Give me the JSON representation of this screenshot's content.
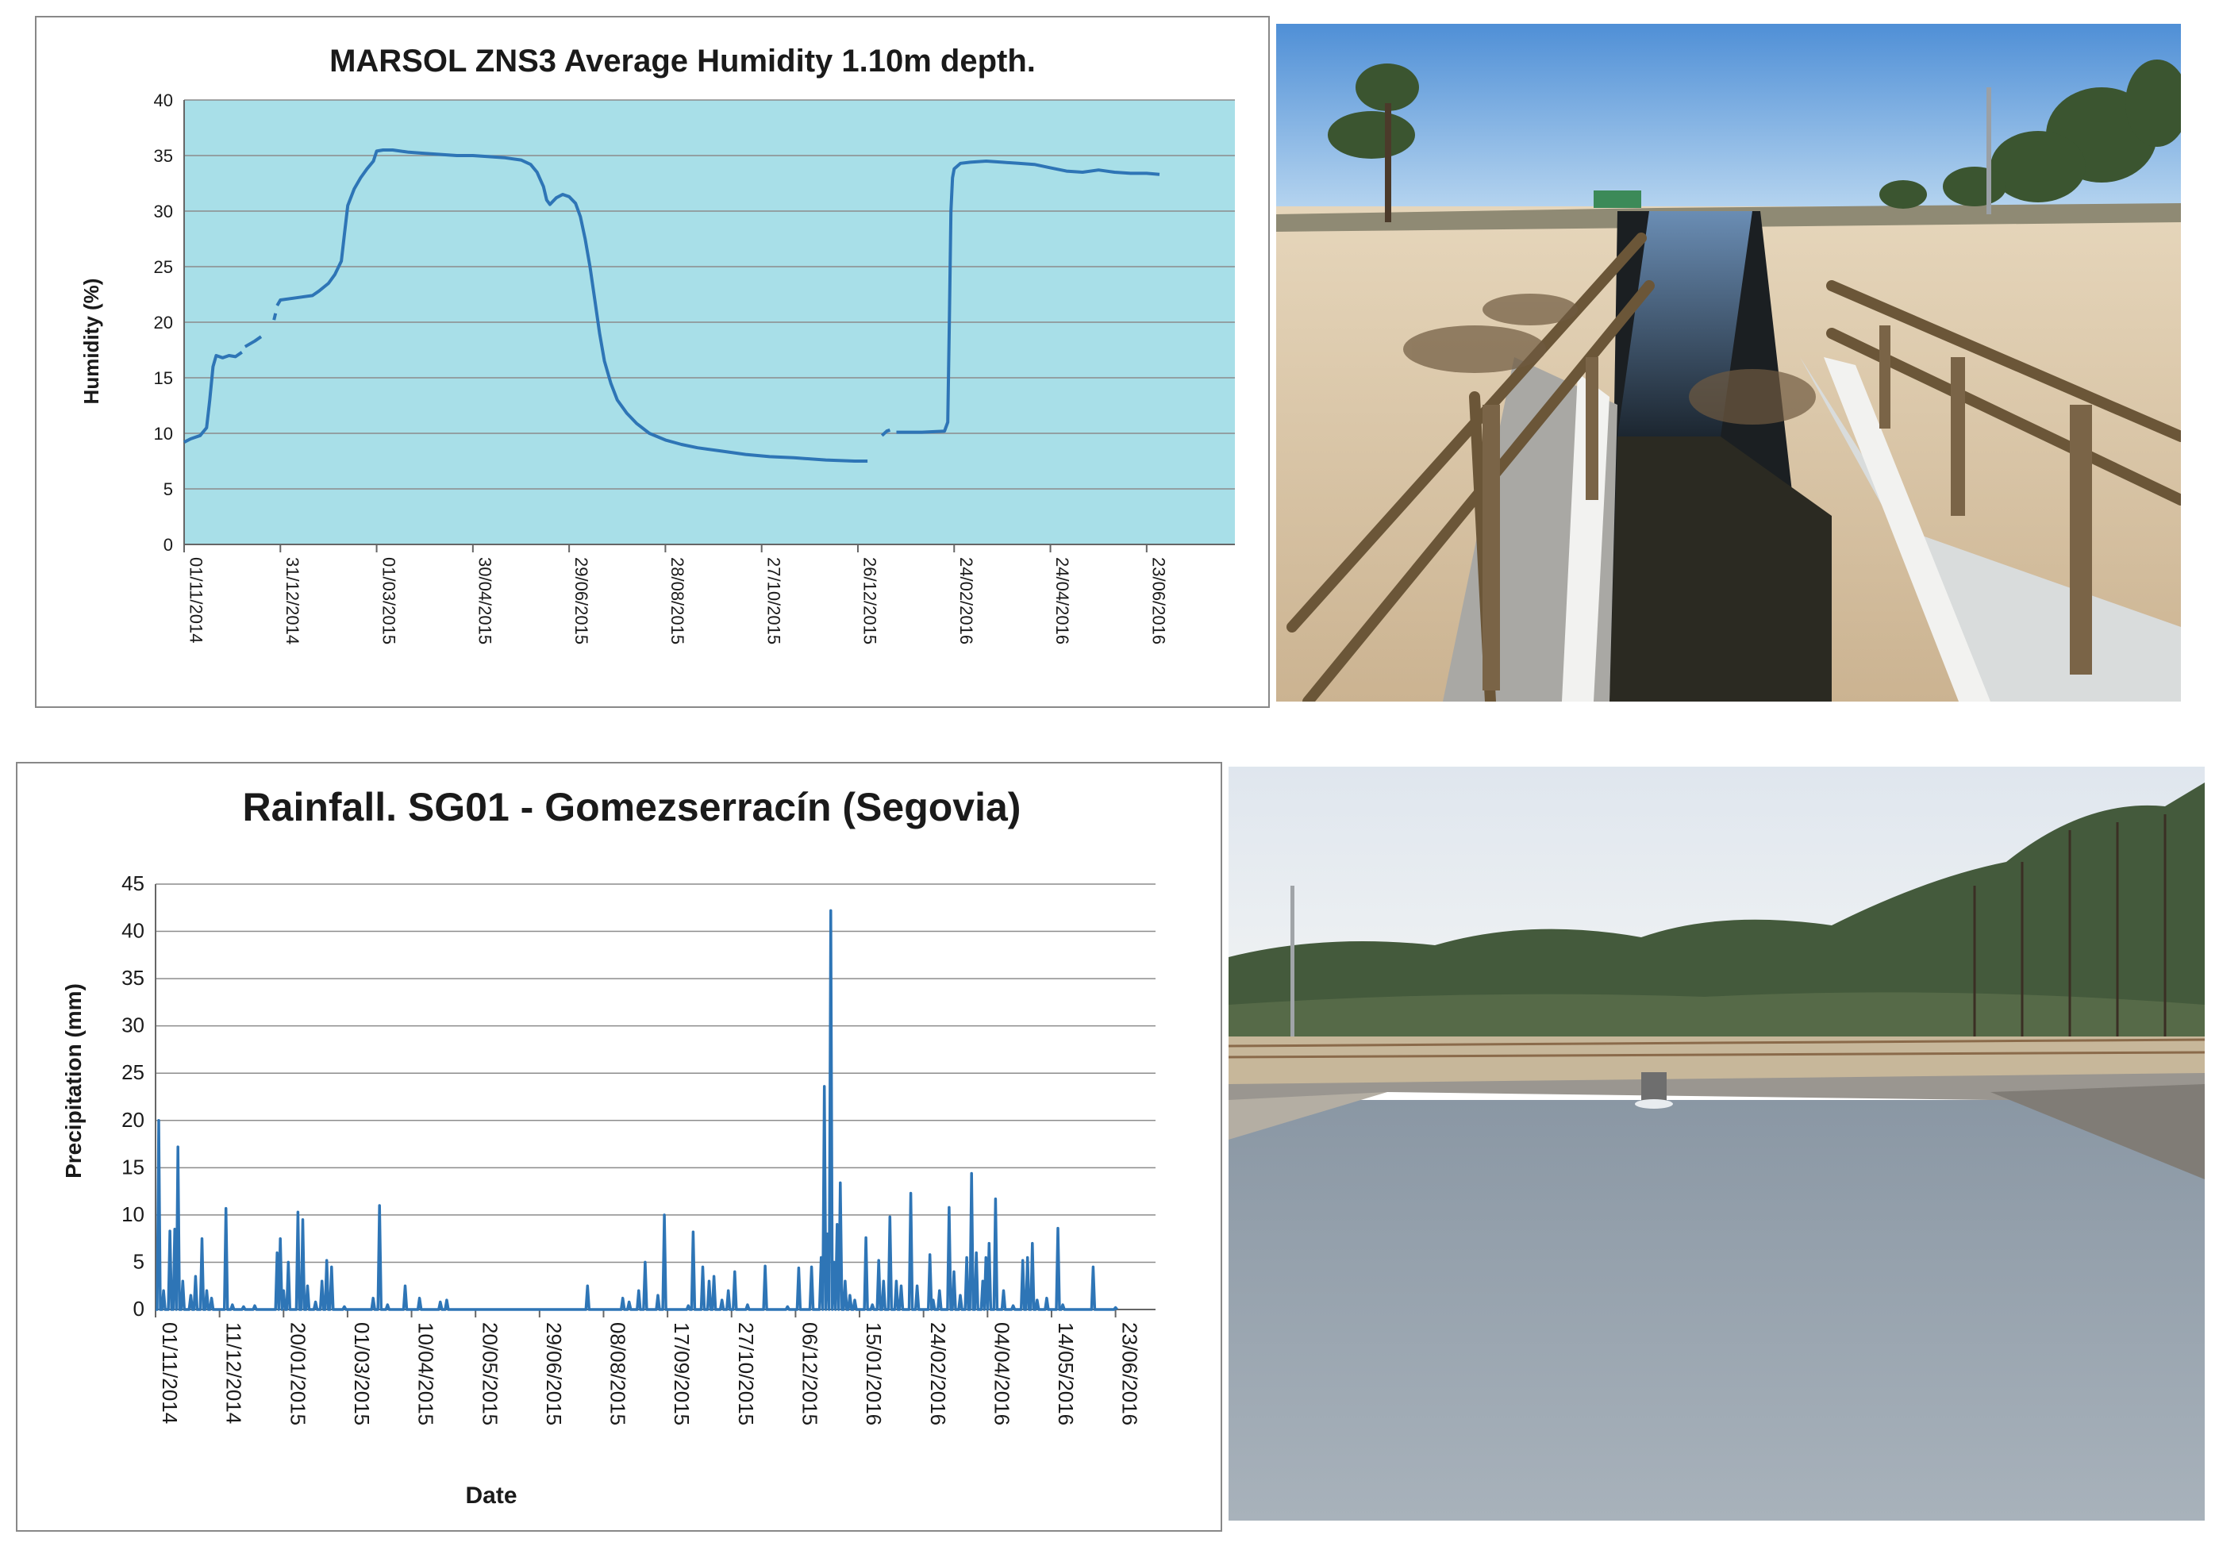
{
  "chart_data": [
    {
      "type": "line",
      "title": "MARSOL ZNS3 Average Humidity 1.10m depth.",
      "xlabel": "",
      "ylabel": "Humidity (%)",
      "ylim": [
        0,
        40
      ],
      "y_ticks": [
        0,
        5,
        10,
        15,
        20,
        25,
        30,
        35,
        40
      ],
      "x_tick_labels": [
        "01/11/2014",
        "31/12/2014",
        "01/03/2015",
        "30/04/2015",
        "29/06/2015",
        "28/08/2015",
        "27/10/2015",
        "26/12/2015",
        "24/02/2016",
        "24/04/2016",
        "23/06/2016"
      ],
      "x_tick_days": [
        0,
        60,
        120,
        180,
        240,
        300,
        360,
        420,
        480,
        540,
        600
      ],
      "xlim_days": [
        0,
        655
      ],
      "plot_background": "#a8dfe8",
      "grid": true,
      "legend": "none",
      "series": [
        {
          "color": "#2e75b6",
          "segments": [
            [
              [
                0,
                9.2
              ],
              [
                4,
                9.5
              ],
              [
                10,
                9.8
              ],
              [
                14,
                10.5
              ],
              [
                16,
                13
              ],
              [
                18,
                16
              ],
              [
                20,
                17
              ],
              [
                24,
                16.8
              ],
              [
                28,
                17
              ],
              [
                32,
                16.9
              ],
              [
                36,
                17.3
              ]
            ],
            [
              [
                38,
                17.8
              ],
              [
                44,
                18.3
              ],
              [
                48,
                18.7
              ]
            ],
            [
              [
                56,
                20.2
              ],
              [
                57,
                20.8
              ]
            ],
            [
              [
                58,
                21.5
              ],
              [
                60,
                22
              ],
              [
                70,
                22.2
              ],
              [
                80,
                22.4
              ],
              [
                84,
                22.8
              ],
              [
                90,
                23.5
              ],
              [
                94,
                24.3
              ],
              [
                98,
                25.5
              ],
              [
                100,
                28
              ],
              [
                102,
                30.5
              ],
              [
                106,
                32
              ],
              [
                110,
                33
              ],
              [
                114,
                33.8
              ],
              [
                118,
                34.5
              ],
              [
                120,
                35.4
              ],
              [
                124,
                35.5
              ],
              [
                130,
                35.5
              ],
              [
                140,
                35.3
              ],
              [
                150,
                35.2
              ],
              [
                160,
                35.1
              ],
              [
                170,
                35
              ],
              [
                180,
                35
              ],
              [
                190,
                34.9
              ],
              [
                200,
                34.8
              ],
              [
                210,
                34.6
              ],
              [
                216,
                34.2
              ],
              [
                220,
                33.5
              ],
              [
                224,
                32.2
              ],
              [
                226,
                31
              ],
              [
                228,
                30.6
              ],
              [
                232,
                31.2
              ],
              [
                236,
                31.5
              ],
              [
                240,
                31.3
              ],
              [
                244,
                30.7
              ],
              [
                247,
                29.5
              ],
              [
                250,
                27.5
              ],
              [
                253,
                25
              ],
              [
                256,
                22
              ],
              [
                259,
                19
              ],
              [
                262,
                16.5
              ],
              [
                266,
                14.5
              ],
              [
                270,
                13
              ],
              [
                276,
                11.8
              ],
              [
                282,
                10.9
              ],
              [
                290,
                10
              ],
              [
                300,
                9.4
              ],
              [
                310,
                9
              ],
              [
                320,
                8.7
              ],
              [
                335,
                8.4
              ],
              [
                350,
                8.1
              ],
              [
                365,
                7.9
              ],
              [
                380,
                7.8
              ],
              [
                400,
                7.6
              ],
              [
                418,
                7.5
              ],
              [
                426,
                7.5
              ]
            ],
            [
              [
                435,
                9.8
              ],
              [
                438,
                10.2
              ],
              [
                440,
                10.3
              ]
            ],
            [
              [
                444,
                10.1
              ],
              [
                460,
                10.1
              ],
              [
                474,
                10.2
              ],
              [
                476,
                11
              ],
              [
                477,
                20
              ],
              [
                478,
                30
              ],
              [
                479,
                33
              ],
              [
                480,
                33.8
              ],
              [
                484,
                34.3
              ],
              [
                490,
                34.4
              ],
              [
                500,
                34.5
              ],
              [
                510,
                34.4
              ],
              [
                520,
                34.3
              ],
              [
                530,
                34.2
              ],
              [
                540,
                33.9
              ],
              [
                550,
                33.6
              ],
              [
                560,
                33.5
              ],
              [
                570,
                33.7
              ],
              [
                580,
                33.5
              ],
              [
                590,
                33.4
              ],
              [
                600,
                33.4
              ],
              [
                608,
                33.3
              ]
            ]
          ]
        }
      ]
    },
    {
      "type": "line",
      "title": "Rainfall. SG01 - Gomezserracín (Segovia)",
      "xlabel": "Date",
      "ylabel": "Precipitation (mm)",
      "ylim": [
        0,
        45
      ],
      "y_ticks": [
        0,
        5,
        10,
        15,
        20,
        25,
        30,
        35,
        40,
        45
      ],
      "x_tick_labels": [
        "01/11/2014",
        "11/12/2014",
        "20/01/2015",
        "01/03/2015",
        "10/04/2015",
        "20/05/2015",
        "29/06/2015",
        "08/08/2015",
        "17/09/2015",
        "27/10/2015",
        "06/12/2015",
        "15/01/2016",
        "24/02/2016",
        "04/04/2016",
        "14/05/2016",
        "23/06/2016"
      ],
      "x_tick_days": [
        0,
        40,
        80,
        120,
        160,
        200,
        240,
        280,
        320,
        360,
        400,
        440,
        480,
        520,
        560,
        600
      ],
      "xlim_days": [
        0,
        625
      ],
      "plot_background": "#ffffff",
      "grid": true,
      "legend": "none",
      "series": [
        {
          "color": "#2e75b6",
          "spikes": [
            [
              2,
              20
            ],
            [
              5,
              2
            ],
            [
              9,
              8.3
            ],
            [
              10,
              1.5
            ],
            [
              12,
              8.5
            ],
            [
              14,
              17.2
            ],
            [
              17,
              3
            ],
            [
              22,
              1.5
            ],
            [
              25,
              3.5
            ],
            [
              29,
              7.5
            ],
            [
              32,
              2
            ],
            [
              35,
              1.2
            ],
            [
              44,
              10.7
            ],
            [
              48,
              0.5
            ],
            [
              55,
              0.3
            ],
            [
              62,
              0.4
            ],
            [
              76,
              6
            ],
            [
              78,
              7.5
            ],
            [
              80,
              2
            ],
            [
              83,
              5
            ],
            [
              89,
              10.3
            ],
            [
              92,
              9.5
            ],
            [
              95,
              2.5
            ],
            [
              100,
              0.8
            ],
            [
              104,
              3
            ],
            [
              107,
              5.2
            ],
            [
              110,
              4.5
            ],
            [
              118,
              0.3
            ],
            [
              136,
              1.2
            ],
            [
              140,
              11
            ],
            [
              145,
              0.5
            ],
            [
              156,
              2.5
            ],
            [
              165,
              1.2
            ],
            [
              178,
              0.8
            ],
            [
              182,
              1
            ],
            [
              270,
              2.5
            ],
            [
              292,
              1.2
            ],
            [
              296,
              0.8
            ],
            [
              302,
              2
            ],
            [
              306,
              5
            ],
            [
              314,
              1.5
            ],
            [
              318,
              10
            ],
            [
              333,
              0.4
            ],
            [
              336,
              8.2
            ],
            [
              342,
              4.5
            ],
            [
              346,
              3
            ],
            [
              349,
              3.5
            ],
            [
              354,
              1
            ],
            [
              358,
              2
            ],
            [
              362,
              4
            ],
            [
              370,
              0.5
            ],
            [
              381,
              4.6
            ],
            [
              395,
              0.3
            ],
            [
              402,
              4.4
            ],
            [
              410,
              4.5
            ],
            [
              416,
              5.5
            ],
            [
              418,
              23.6
            ],
            [
              420,
              8
            ],
            [
              422,
              42.2
            ],
            [
              424,
              5
            ],
            [
              426,
              9
            ],
            [
              428,
              13.4
            ],
            [
              431,
              3
            ],
            [
              434,
              1.5
            ],
            [
              437,
              1
            ],
            [
              444,
              7.6
            ],
            [
              448,
              0.5
            ],
            [
              452,
              5.2
            ],
            [
              455,
              3
            ],
            [
              459,
              9.8
            ],
            [
              463,
              3
            ],
            [
              466,
              2.5
            ],
            [
              472,
              12.3
            ],
            [
              476,
              2.5
            ],
            [
              484,
              5.8
            ],
            [
              486,
              1
            ],
            [
              490,
              2
            ],
            [
              496,
              10.8
            ],
            [
              499,
              4
            ],
            [
              503,
              1.5
            ],
            [
              507,
              5.5
            ],
            [
              510,
              14.4
            ],
            [
              513,
              6
            ],
            [
              517,
              3
            ],
            [
              519,
              5.5
            ],
            [
              521,
              7
            ],
            [
              525,
              11.7
            ],
            [
              530,
              2
            ],
            [
              536,
              0.4
            ],
            [
              542,
              5.2
            ],
            [
              545,
              5.5
            ],
            [
              548,
              7
            ],
            [
              551,
              1
            ],
            [
              557,
              1.2
            ],
            [
              564,
              8.6
            ],
            [
              567,
              0.5
            ],
            [
              586,
              4.5
            ],
            [
              600,
              0.2
            ]
          ]
        }
      ]
    }
  ]
}
